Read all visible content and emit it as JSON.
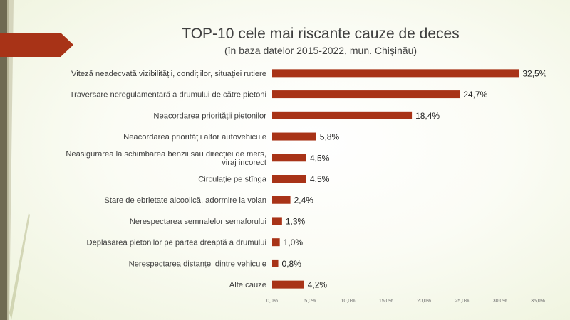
{
  "slide": {
    "title": "TOP-10 cele mai riscante cauze de deces",
    "subtitle": "(în baza datelor 2015-2022, mun. Chișinău)"
  },
  "colors": {
    "bar": "#a83317",
    "text": "#404040",
    "tick": "#6a6a6a",
    "grid": "#e3e3dc",
    "arrow": "#a83317",
    "band": "#6f6a52"
  },
  "chart_data": {
    "type": "bar",
    "orientation": "horizontal",
    "title": "TOP-10 cele mai riscante cauze de deces",
    "subtitle": "(în baza datelor 2015-2022, mun. Chișinău)",
    "categories": [
      [
        "Viteză neadecvată vizibilității, condițiilor, situației rutiere"
      ],
      [
        "Traversare neregulamentară a drumului de către pietoni"
      ],
      [
        "Neacordarea priorității pietonilor"
      ],
      [
        "Neacordarea priorității altor autovehicule"
      ],
      [
        "Neasigurarea la schimbarea benzii sau direcției de mers,",
        "viraj incorect"
      ],
      [
        "Circulație pe stînga"
      ],
      [
        "Stare de ebrietate alcoolică, adormire la volan"
      ],
      [
        "Nerespectarea semnalelor semaforului"
      ],
      [
        "Deplasarea pietonilor pe partea dreaptă a drumului"
      ],
      [
        "Nerespectarea distanței dintre vehicule"
      ],
      [
        "Alte cauze"
      ]
    ],
    "values": [
      32.5,
      24.7,
      18.4,
      5.8,
      4.5,
      4.5,
      2.4,
      1.3,
      1.0,
      0.8,
      4.2
    ],
    "data_labels": [
      "32,5%",
      "24,7%",
      "18,4%",
      "5,8%",
      "4,5%",
      "4,5%",
      "2,4%",
      "1,3%",
      "1,0%",
      "0,8%",
      "4,2%"
    ],
    "x_ticks": [
      0,
      5,
      10,
      15,
      20,
      25,
      30,
      35
    ],
    "x_tick_labels": [
      "0,0%",
      "5,0%",
      "10,0%",
      "15,0%",
      "20,0%",
      "25,0%",
      "30,0%",
      "35,0%"
    ],
    "xlim": [
      0,
      35
    ],
    "grid": false,
    "legend": "none"
  }
}
